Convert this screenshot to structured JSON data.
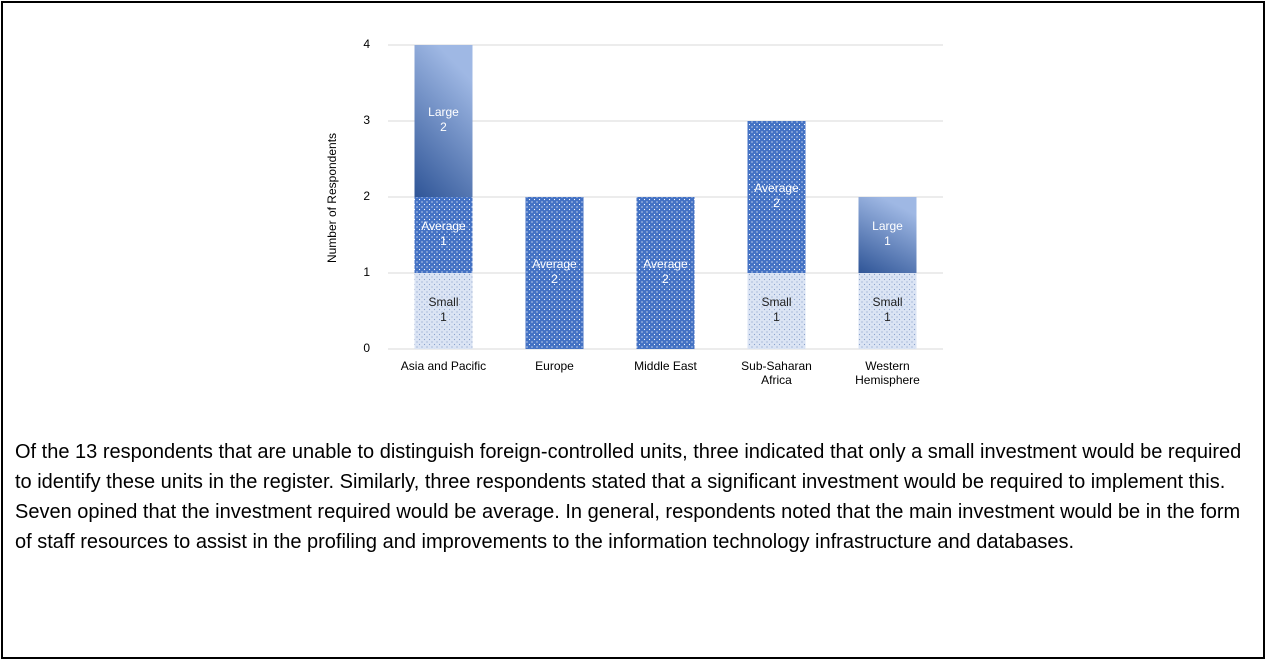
{
  "chart_data": {
    "type": "stacked_bar",
    "y_label": "Number of Respondents",
    "categories": [
      "Asia and Pacific",
      "Europe",
      "Middle East",
      "Sub-Saharan Africa",
      "Western Hemisphere"
    ],
    "series": [
      {
        "name": "Small",
        "color": "#dbe4f4",
        "values": [
          1,
          null,
          null,
          1,
          1
        ]
      },
      {
        "name": "Average",
        "color": "#4472c4",
        "values": [
          1,
          2,
          2,
          2,
          null
        ]
      },
      {
        "name": "Large",
        "color": "#2f5597",
        "values": [
          2,
          null,
          null,
          null,
          1
        ]
      }
    ],
    "ylim": [
      0,
      4
    ],
    "yticks": [
      0,
      1,
      2,
      3,
      4
    ],
    "grid": true
  },
  "paragraph": "Of the 13 respondents that are unable to distinguish foreign-controlled units, three indicated that only a small investment would be required to identify these units in the register. Similarly, three respondents stated that a significant investment would be required to implement this. Seven opined that the investment required would be average. In general, respondents noted that the main investment would be in the form of staff resources to assist in the profiling and improvements to the information technology infrastructure and databases."
}
